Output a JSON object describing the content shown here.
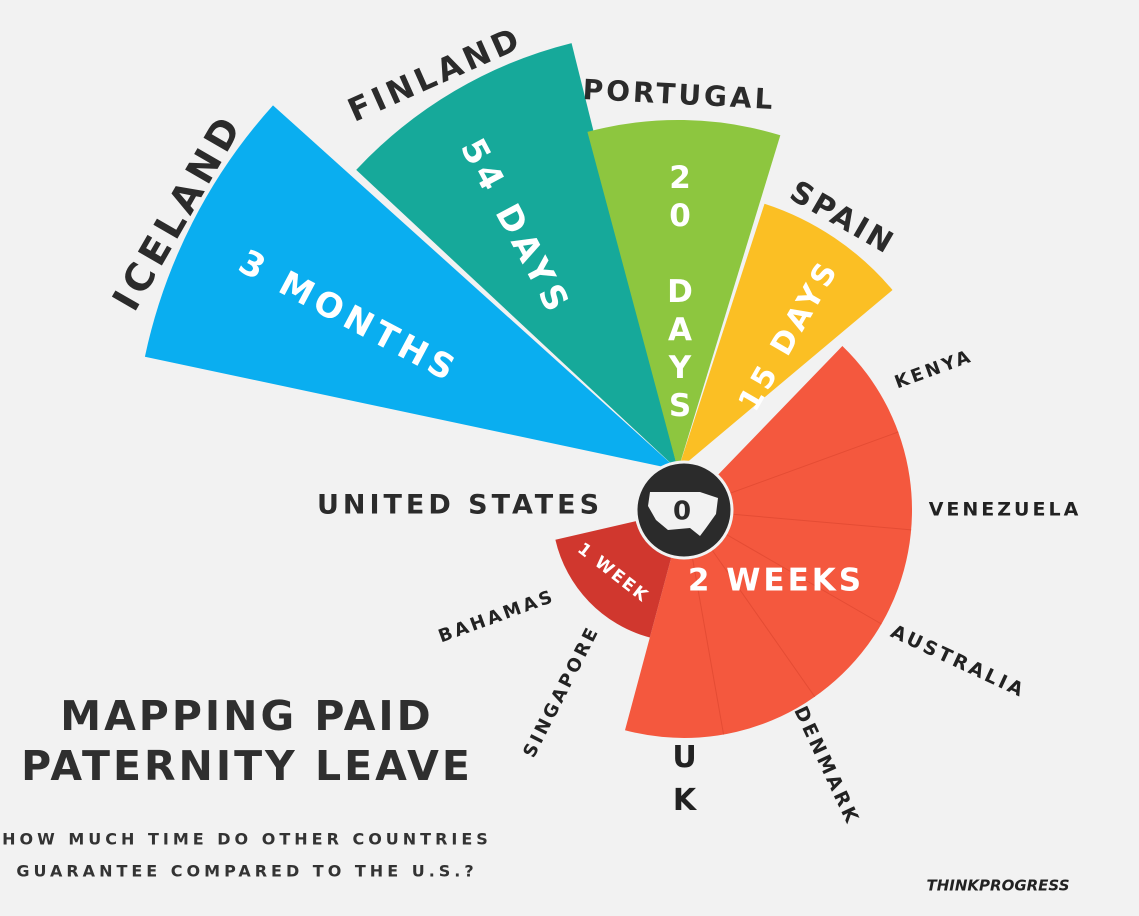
{
  "header": {
    "title_lines": [
      "MAPPING PAID",
      "PATERNITY LEAVE"
    ],
    "subtitle_lines": [
      "HOW MUCH TIME DO OTHER COUNTRIES",
      "GUARANTEE COMPARED TO THE U.S.?"
    ],
    "credit": "THINKPROGRESS"
  },
  "center": {
    "country": "UNITED STATES",
    "label": "0"
  },
  "segments": [
    {
      "countries": [
        "ICELAND"
      ],
      "label": "3 MONTHS",
      "color": "#0aaef0"
    },
    {
      "countries": [
        "FINLAND"
      ],
      "label": "54 DAYS",
      "color": "#16a99a"
    },
    {
      "countries": [
        "PORTUGAL"
      ],
      "label": "20 DAYS",
      "color": "#8dc63f"
    },
    {
      "countries": [
        "SPAIN"
      ],
      "label": "15 DAYS",
      "color": "#fbbf24"
    },
    {
      "countries": [
        "KENYA",
        "VENEZUELA",
        "AUSTRALIA",
        "DENMARK",
        "UK"
      ],
      "label": "2 WEEKS",
      "color": "#f4583e"
    },
    {
      "countries": [
        "BAHAMAS",
        "SINGAPORE"
      ],
      "label": "1 WEEK",
      "color": "#d0372e"
    }
  ]
}
